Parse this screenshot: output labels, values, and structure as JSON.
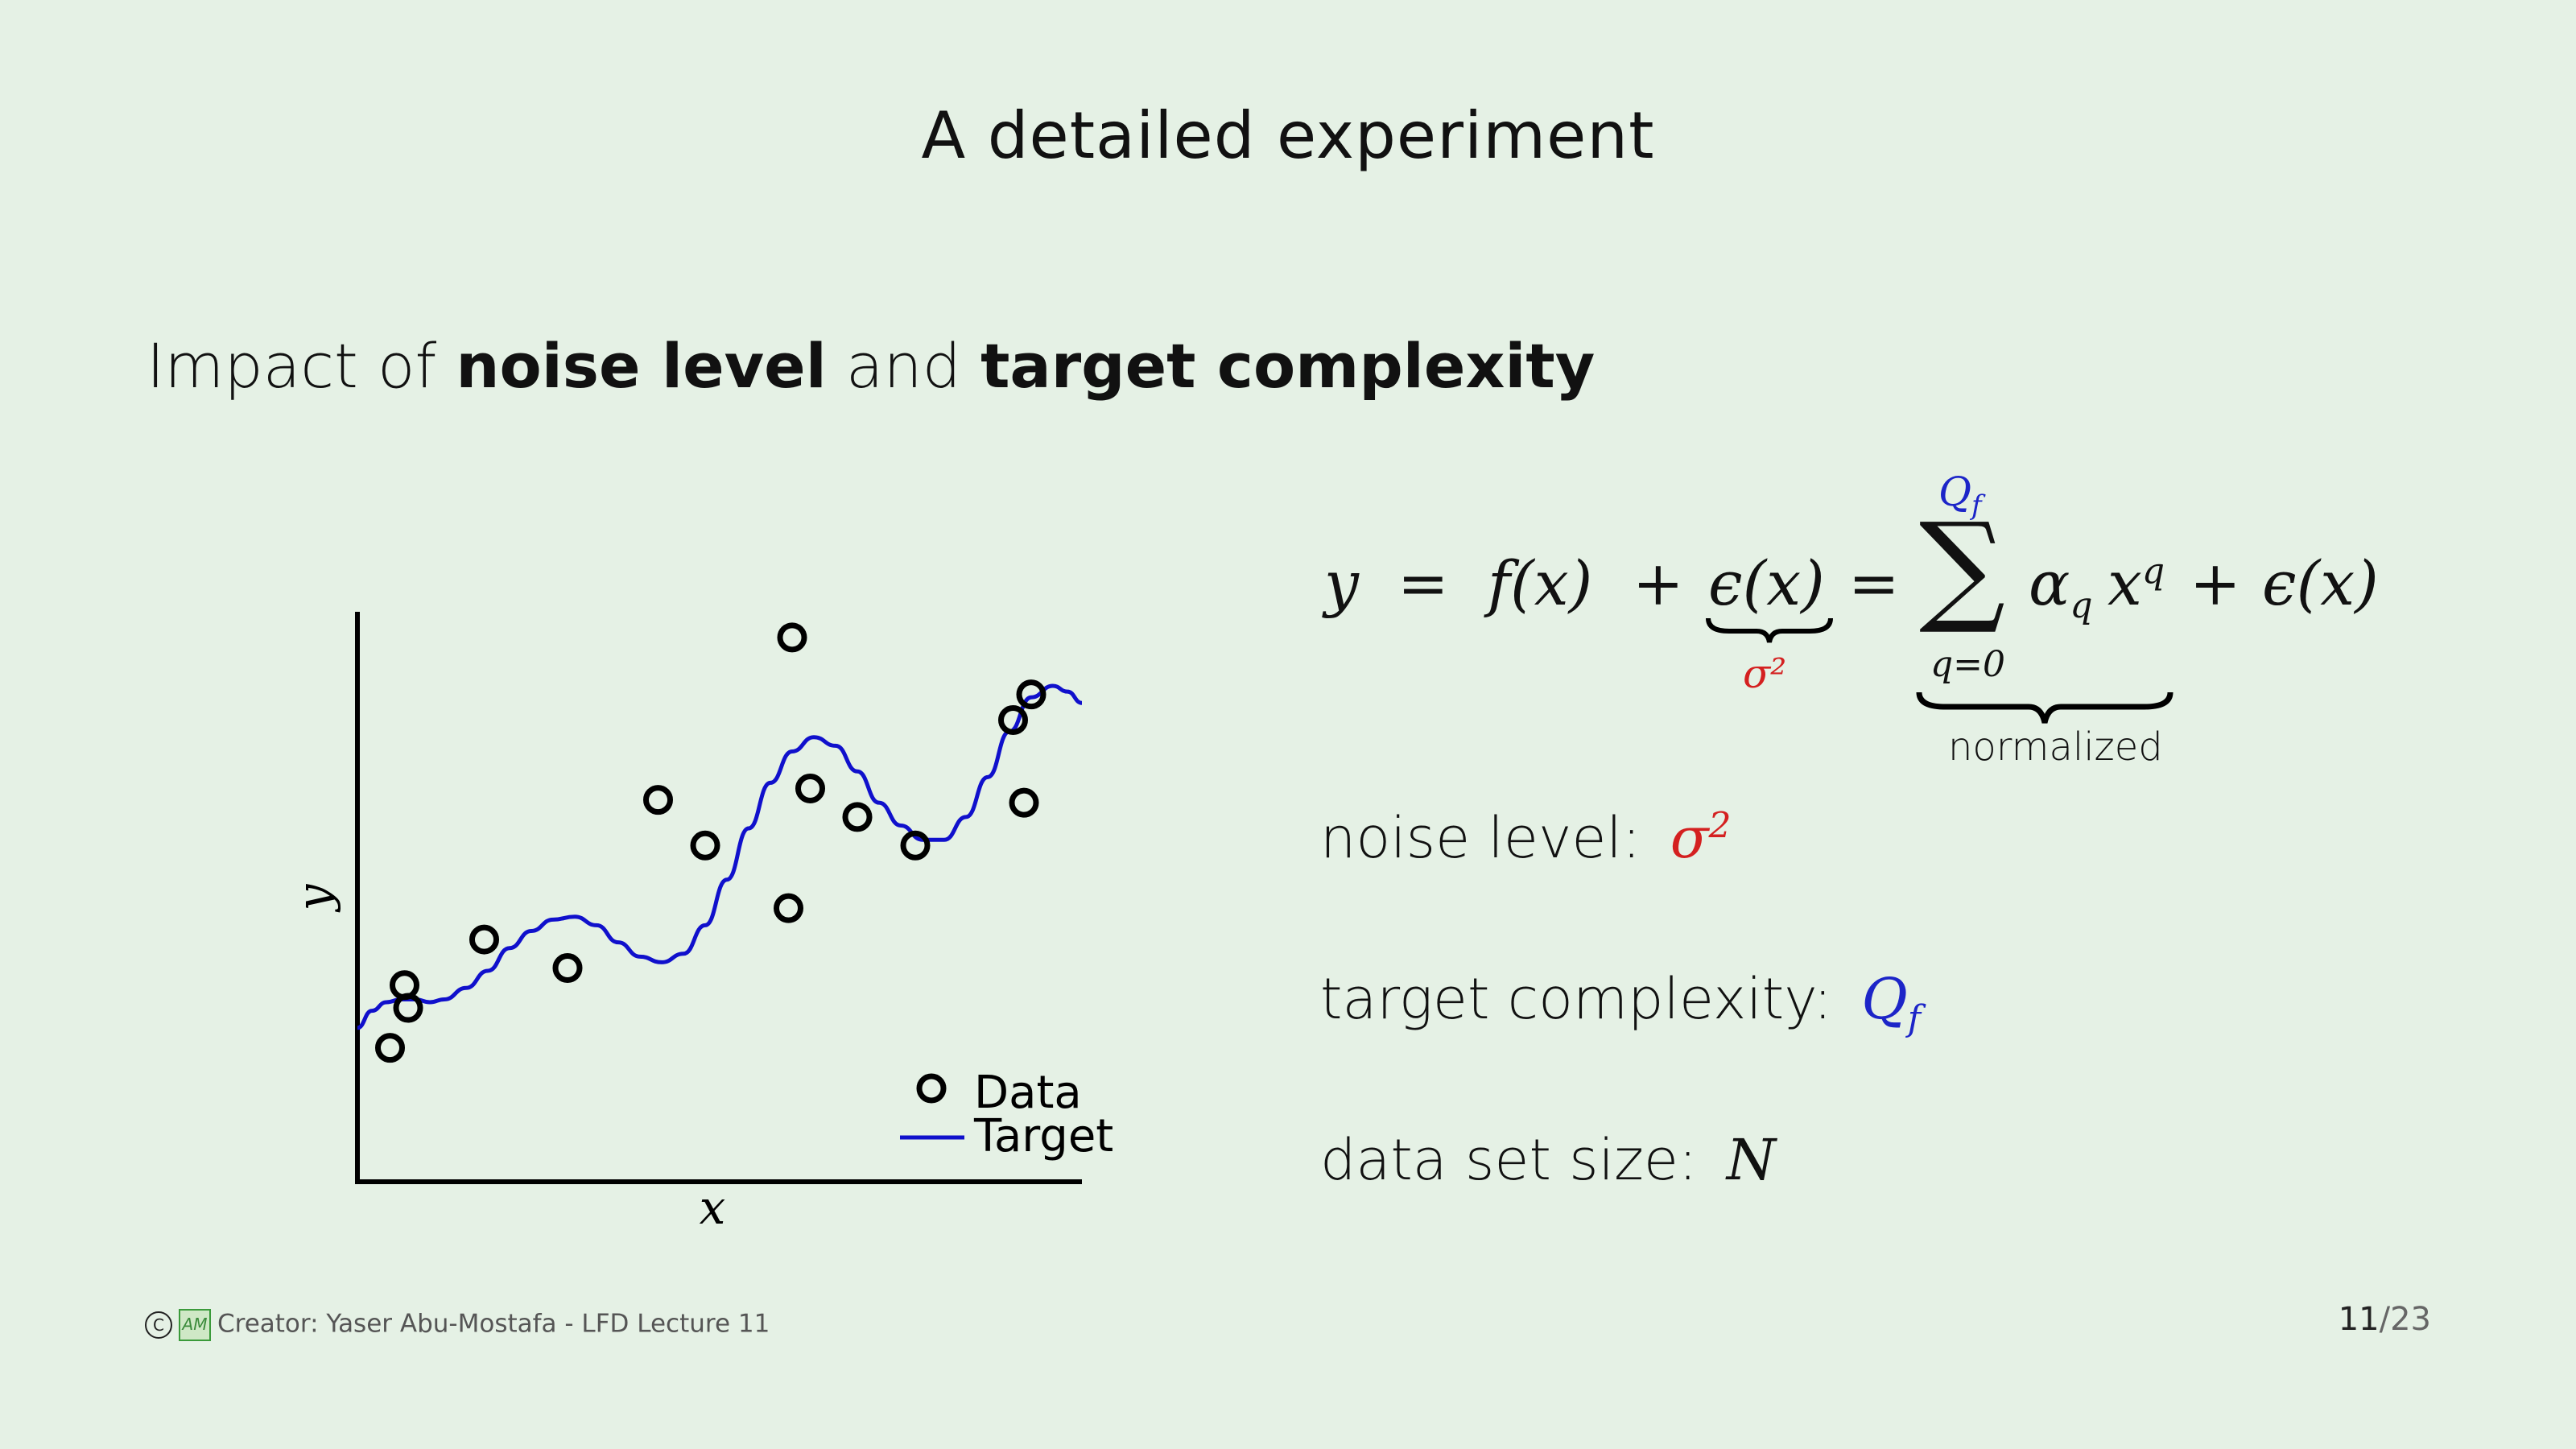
{
  "slide": {
    "title": "A detailed experiment",
    "subtitle": {
      "part1": "Impact of ",
      "bold1": "noise level",
      "part2": " and ",
      "bold2": "target complexity"
    }
  },
  "equation": {
    "lhs": "y",
    "eq1": "=",
    "fx": "f(x)",
    "plus1": "+",
    "epsilon": "ϵ(x)",
    "sigma_label": "σ²",
    "eq2": "=",
    "sum_symbol": "∑",
    "sum_upper": "Q",
    "sum_upper_sub": "f",
    "sum_lower": "q=0",
    "term": "α",
    "term_sub": "q",
    "term_x": "x",
    "term_sup": "q",
    "plus2": "+",
    "epsilon2": "ϵ(x)",
    "normalized_label": "normalized"
  },
  "bullets": {
    "noise_label": "noise level:",
    "noise_value": "σ",
    "noise_sup": "2",
    "complexity_label": "target complexity:",
    "complexity_value": "Q",
    "complexity_sub": "f",
    "size_label": "data set size:",
    "size_value": "N"
  },
  "chart_data": {
    "type": "scatter",
    "xlabel": "x",
    "ylabel": "y",
    "legend": [
      "Data",
      "Target"
    ],
    "legend_position": "bottom-right",
    "grid": false,
    "xlim": [
      0,
      1
    ],
    "ylim": [
      0,
      1
    ],
    "series": [
      {
        "name": "Data",
        "kind": "points",
        "marker": "open-circle",
        "points": [
          [
            0.045,
            0.235
          ],
          [
            0.065,
            0.345
          ],
          [
            0.07,
            0.305
          ],
          [
            0.175,
            0.425
          ],
          [
            0.29,
            0.375
          ],
          [
            0.415,
            0.67
          ],
          [
            0.48,
            0.59
          ],
          [
            0.595,
            0.48
          ],
          [
            0.6,
            0.955
          ],
          [
            0.625,
            0.69
          ],
          [
            0.69,
            0.64
          ],
          [
            0.77,
            0.59
          ],
          [
            0.905,
            0.81
          ],
          [
            0.92,
            0.665
          ],
          [
            0.93,
            0.855
          ]
        ]
      },
      {
        "name": "Target",
        "kind": "line",
        "color": "#1010cc",
        "points": [
          [
            0.0,
            0.27
          ],
          [
            0.02,
            0.3
          ],
          [
            0.04,
            0.315
          ],
          [
            0.06,
            0.32
          ],
          [
            0.08,
            0.32
          ],
          [
            0.1,
            0.315
          ],
          [
            0.12,
            0.32
          ],
          [
            0.15,
            0.34
          ],
          [
            0.18,
            0.37
          ],
          [
            0.21,
            0.41
          ],
          [
            0.24,
            0.44
          ],
          [
            0.27,
            0.46
          ],
          [
            0.3,
            0.465
          ],
          [
            0.33,
            0.45
          ],
          [
            0.36,
            0.42
          ],
          [
            0.39,
            0.395
          ],
          [
            0.42,
            0.385
          ],
          [
            0.45,
            0.4
          ],
          [
            0.48,
            0.45
          ],
          [
            0.51,
            0.53
          ],
          [
            0.54,
            0.62
          ],
          [
            0.57,
            0.7
          ],
          [
            0.6,
            0.755
          ],
          [
            0.63,
            0.78
          ],
          [
            0.66,
            0.765
          ],
          [
            0.69,
            0.72
          ],
          [
            0.72,
            0.665
          ],
          [
            0.75,
            0.625
          ],
          [
            0.78,
            0.6
          ],
          [
            0.81,
            0.6
          ],
          [
            0.84,
            0.64
          ],
          [
            0.87,
            0.71
          ],
          [
            0.9,
            0.79
          ],
          [
            0.93,
            0.85
          ],
          [
            0.96,
            0.87
          ],
          [
            0.98,
            0.86
          ],
          [
            1.0,
            0.84
          ]
        ]
      }
    ]
  },
  "footer": {
    "copyright_symbol": "C",
    "logo_text": "AM",
    "text": "Creator: Yaser Abu-Mostafa - LFD Lecture 11"
  },
  "page": {
    "current": "11",
    "total": "/23"
  }
}
